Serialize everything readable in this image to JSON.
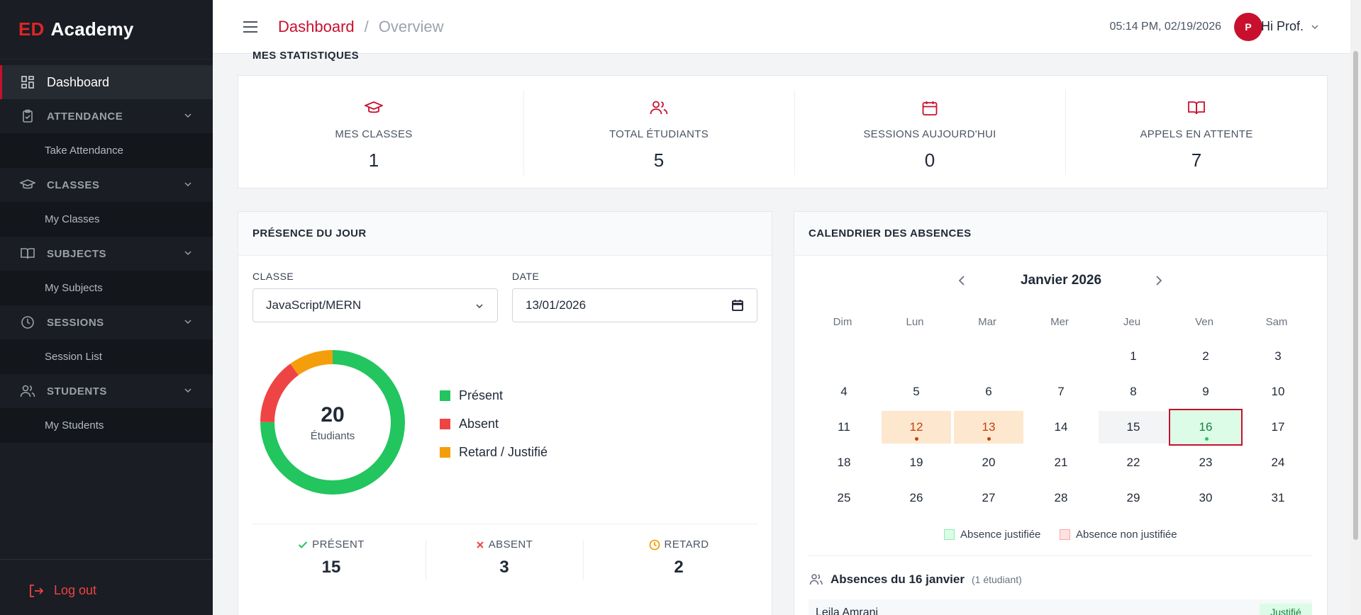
{
  "brand": {
    "prefix": "ED",
    "name": "Academy"
  },
  "sidebar": {
    "dashboard": "Dashboard",
    "sections": [
      {
        "label": "ATTENDANCE",
        "sub": "Take Attendance"
      },
      {
        "label": "CLASSES",
        "sub": "My Classes"
      },
      {
        "label": "SUBJECTS",
        "sub": "My Subjects"
      },
      {
        "label": "SESSIONS",
        "sub": "Session List"
      },
      {
        "label": "STUDENTS",
        "sub": "My Students"
      }
    ],
    "logout": "Log out"
  },
  "header": {
    "crumb_root": "Dashboard",
    "crumb_sep": "/",
    "crumb_current": "Overview",
    "datetime": "05:14 PM, 02/19/2026",
    "avatar_initial": "P",
    "greeting": "Hi Prof."
  },
  "stats": {
    "title": "MES STATISTIQUES",
    "items": [
      {
        "label": "MES CLASSES",
        "value": "1"
      },
      {
        "label": "TOTAL ÉTUDIANTS",
        "value": "5"
      },
      {
        "label": "SESSIONS AUJOURD'HUI",
        "value": "0"
      },
      {
        "label": "APPELS EN ATTENTE",
        "value": "7"
      }
    ]
  },
  "presence": {
    "title": "PRÉSENCE DU JOUR",
    "class_label": "CLASSE",
    "class_value": "JavaScript/MERN",
    "date_label": "DATE",
    "date_value": "13/01/2026",
    "donut_total": "20",
    "donut_caption": "Étudiants",
    "legend": [
      {
        "label": "Présent",
        "color": "#22c55e"
      },
      {
        "label": "Absent",
        "color": "#ef4444"
      },
      {
        "label": "Retard / Justifié",
        "color": "#f59e0b"
      }
    ],
    "summary": {
      "present_label": "PRÉSENT",
      "present_value": "15",
      "absent_label": "ABSENT",
      "absent_value": "3",
      "late_label": "RETARD",
      "late_value": "2"
    }
  },
  "calendar": {
    "title": "CALENDRIER DES ABSENCES",
    "month": "Janvier 2026",
    "weekdays": [
      "Dim",
      "Lun",
      "Mar",
      "Mer",
      "Jeu",
      "Ven",
      "Sam"
    ],
    "days": [
      "1",
      "2",
      "3",
      "4",
      "5",
      "6",
      "7",
      "8",
      "9",
      "10",
      "11",
      "12",
      "13",
      "14",
      "15",
      "16",
      "17",
      "18",
      "19",
      "20",
      "21",
      "22",
      "23",
      "24",
      "25",
      "26",
      "27",
      "28",
      "29",
      "30",
      "31"
    ],
    "legend_justified": "Absence justifiée",
    "legend_unjustified": "Absence non justifiée",
    "colors": {
      "justified": "#dcfce7",
      "unjustified": "#fde7cf",
      "selected_border": "#c8102e"
    },
    "absences_title": "Absences du 16 janvier",
    "absences_count": "(1 étudiant)",
    "absence_rows": [
      {
        "name": "Leila Amrani",
        "status": "Justifié"
      }
    ]
  }
}
